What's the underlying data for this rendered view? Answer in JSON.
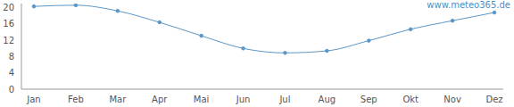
{
  "chart_data": {
    "type": "line",
    "annotations": [
      "www.meteo365.de"
    ],
    "categories": [
      "Jan",
      "Feb",
      "Mar",
      "Apr",
      "Mai",
      "Jun",
      "Jul",
      "Aug",
      "Sep",
      "Okt",
      "Nov",
      "Dez"
    ],
    "values": [
      20.3,
      20.6,
      19.2,
      16.4,
      13.1,
      10.0,
      8.9,
      9.4,
      11.9,
      14.7,
      16.8,
      18.8
    ],
    "color": "#5a96c8",
    "marker": "circle",
    "ylim": [
      0,
      21
    ],
    "yticks": [
      0,
      4,
      8,
      12,
      16,
      20
    ],
    "grid": false
  }
}
